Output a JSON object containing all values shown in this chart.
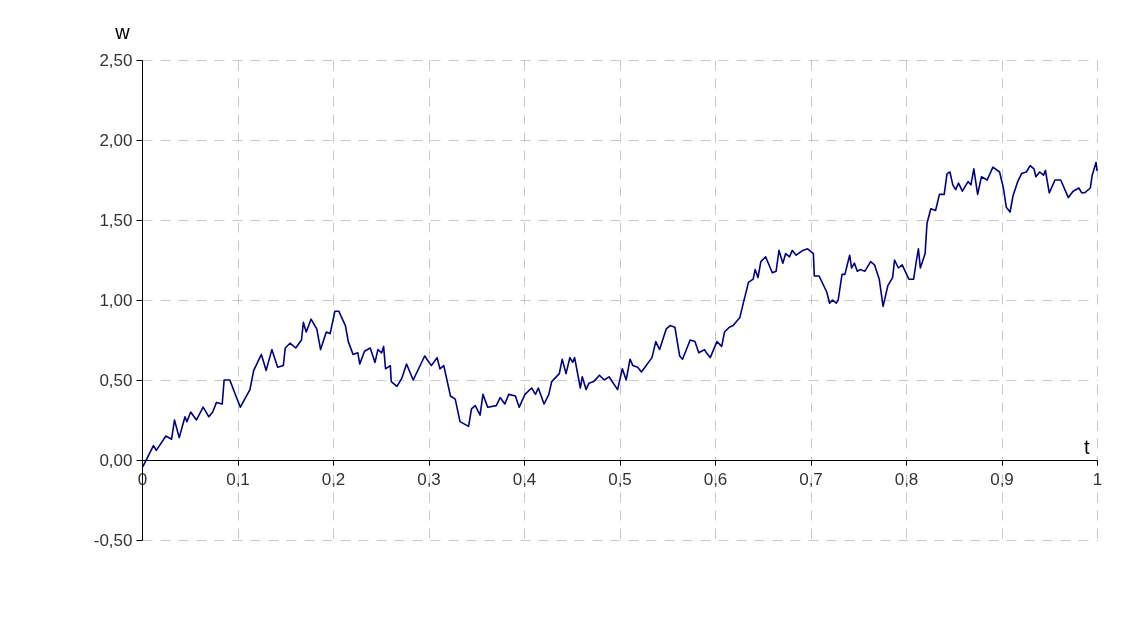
{
  "chart_data": {
    "type": "line",
    "xlabel": "t",
    "ylabel": "w",
    "x": [
      0.001,
      0.012,
      0.015,
      0.025,
      0.031,
      0.034,
      0.039,
      0.045,
      0.047,
      0.051,
      0.057,
      0.064,
      0.07,
      0.074,
      0.078,
      0.084,
      0.086,
      0.092,
      0.097,
      0.103,
      0.113,
      0.117,
      0.125,
      0.13,
      0.136,
      0.142,
      0.148,
      0.15,
      0.155,
      0.161,
      0.167,
      0.169,
      0.172,
      0.177,
      0.183,
      0.187,
      0.193,
      0.197,
      0.202,
      0.206,
      0.213,
      0.216,
      0.221,
      0.226,
      0.228,
      0.233,
      0.239,
      0.244,
      0.247,
      0.251,
      0.253,
      0.255,
      0.26,
      0.261,
      0.267,
      0.272,
      0.277,
      0.284,
      0.296,
      0.303,
      0.309,
      0.312,
      0.316,
      0.323,
      0.328,
      0.333,
      0.342,
      0.345,
      0.349,
      0.354,
      0.357,
      0.362,
      0.371,
      0.375,
      0.38,
      0.384,
      0.391,
      0.395,
      0.401,
      0.408,
      0.412,
      0.415,
      0.421,
      0.426,
      0.429,
      0.437,
      0.44,
      0.444,
      0.448,
      0.451,
      0.453,
      0.459,
      0.461,
      0.465,
      0.468,
      0.473,
      0.479,
      0.484,
      0.489,
      0.498,
      0.503,
      0.507,
      0.511,
      0.514,
      0.519,
      0.523,
      0.534,
      0.538,
      0.542,
      0.549,
      0.553,
      0.558,
      0.563,
      0.566,
      0.574,
      0.579,
      0.583,
      0.589,
      0.591,
      0.595,
      0.602,
      0.607,
      0.61,
      0.615,
      0.619,
      0.626,
      0.63,
      0.633,
      0.635,
      0.64,
      0.642,
      0.645,
      0.648,
      0.653,
      0.66,
      0.664,
      0.667,
      0.671,
      0.674,
      0.678,
      0.681,
      0.685,
      0.692,
      0.697,
      0.703,
      0.704,
      0.709,
      0.717,
      0.72,
      0.723,
      0.727,
      0.729,
      0.733,
      0.736,
      0.741,
      0.743,
      0.746,
      0.749,
      0.752,
      0.757,
      0.763,
      0.767,
      0.772,
      0.776,
      0.781,
      0.786,
      0.788,
      0.792,
      0.796,
      0.803,
      0.808,
      0.811,
      0.813,
      0.815,
      0.82,
      0.822,
      0.826,
      0.831,
      0.835,
      0.84,
      0.843,
      0.846,
      0.849,
      0.852,
      0.855,
      0.859,
      0.865,
      0.868,
      0.871,
      0.875,
      0.879,
      0.885,
      0.891,
      0.898,
      0.902,
      0.905,
      0.909,
      0.912,
      0.917,
      0.921,
      0.926,
      0.93,
      0.934,
      0.936,
      0.94,
      0.944,
      0.946,
      0.95,
      0.956,
      0.962,
      0.97,
      0.975,
      0.981,
      0.984,
      0.987,
      0.993,
      0.995,
      0.999,
      1.0
    ],
    "series": [
      {
        "color": "#000080",
        "values": [
          -0.04,
          0.09,
          0.06,
          0.15,
          0.13,
          0.25,
          0.14,
          0.27,
          0.24,
          0.3,
          0.25,
          0.33,
          0.27,
          0.3,
          0.36,
          0.35,
          0.5,
          0.5,
          0.42,
          0.33,
          0.44,
          0.56,
          0.66,
          0.56,
          0.69,
          0.58,
          0.59,
          0.7,
          0.73,
          0.7,
          0.75,
          0.86,
          0.8,
          0.88,
          0.82,
          0.69,
          0.8,
          0.79,
          0.93,
          0.93,
          0.84,
          0.74,
          0.66,
          0.67,
          0.6,
          0.68,
          0.7,
          0.61,
          0.69,
          0.67,
          0.71,
          0.57,
          0.59,
          0.49,
          0.46,
          0.51,
          0.6,
          0.5,
          0.65,
          0.59,
          0.64,
          0.57,
          0.59,
          0.4,
          0.38,
          0.24,
          0.21,
          0.32,
          0.34,
          0.28,
          0.41,
          0.33,
          0.34,
          0.39,
          0.35,
          0.41,
          0.4,
          0.33,
          0.41,
          0.45,
          0.41,
          0.45,
          0.35,
          0.41,
          0.49,
          0.54,
          0.63,
          0.54,
          0.64,
          0.61,
          0.64,
          0.45,
          0.52,
          0.44,
          0.48,
          0.49,
          0.53,
          0.5,
          0.52,
          0.44,
          0.57,
          0.5,
          0.63,
          0.59,
          0.58,
          0.55,
          0.64,
          0.74,
          0.69,
          0.82,
          0.84,
          0.83,
          0.65,
          0.63,
          0.75,
          0.74,
          0.67,
          0.69,
          0.67,
          0.64,
          0.74,
          0.71,
          0.8,
          0.83,
          0.84,
          0.89,
          0.99,
          1.06,
          1.11,
          1.13,
          1.19,
          1.14,
          1.24,
          1.27,
          1.17,
          1.18,
          1.31,
          1.23,
          1.29,
          1.27,
          1.31,
          1.28,
          1.31,
          1.32,
          1.29,
          1.15,
          1.15,
          1.05,
          0.98,
          1.0,
          0.98,
          1.0,
          1.16,
          1.16,
          1.28,
          1.2,
          1.23,
          1.18,
          1.19,
          1.18,
          1.24,
          1.22,
          1.13,
          0.96,
          1.09,
          1.14,
          1.25,
          1.2,
          1.22,
          1.13,
          1.13,
          1.25,
          1.32,
          1.2,
          1.29,
          1.48,
          1.57,
          1.56,
          1.66,
          1.66,
          1.79,
          1.8,
          1.72,
          1.69,
          1.73,
          1.68,
          1.74,
          1.72,
          1.82,
          1.66,
          1.77,
          1.75,
          1.83,
          1.8,
          1.7,
          1.58,
          1.55,
          1.65,
          1.74,
          1.79,
          1.8,
          1.84,
          1.82,
          1.77,
          1.8,
          1.78,
          1.81,
          1.67,
          1.75,
          1.75,
          1.64,
          1.68,
          1.7,
          1.67,
          1.67,
          1.7,
          1.78,
          1.86,
          1.81
        ]
      }
    ],
    "xlim": [
      0,
      1
    ],
    "ylim": [
      -0.5,
      2.5
    ],
    "xticks": [
      0,
      {
        "value": 0.1,
        "label": "0,1"
      },
      {
        "value": 0.2,
        "label": "0,2"
      },
      {
        "value": 0.3,
        "label": "0,3"
      },
      {
        "value": 0.4,
        "label": "0,4"
      },
      {
        "value": 0.5,
        "label": "0,5"
      },
      {
        "value": 0.6,
        "label": "0,6"
      },
      {
        "value": 0.7,
        "label": "0,7"
      },
      {
        "value": 0.8,
        "label": "0,8"
      },
      {
        "value": 0.9,
        "label": "0,9"
      },
      1
    ],
    "yticks": [
      {
        "value": -0.5,
        "label": "-0,50"
      },
      {
        "value": 0,
        "label": "0,00"
      },
      {
        "value": 0.5,
        "label": "0,50"
      },
      {
        "value": 1,
        "label": "1,00"
      },
      {
        "value": 1.5,
        "label": "1,50"
      },
      {
        "value": 2,
        "label": "2,00"
      },
      {
        "value": 2.5,
        "label": "2,50"
      }
    ],
    "grid": true,
    "marker": "none",
    "line_style": "solid"
  }
}
